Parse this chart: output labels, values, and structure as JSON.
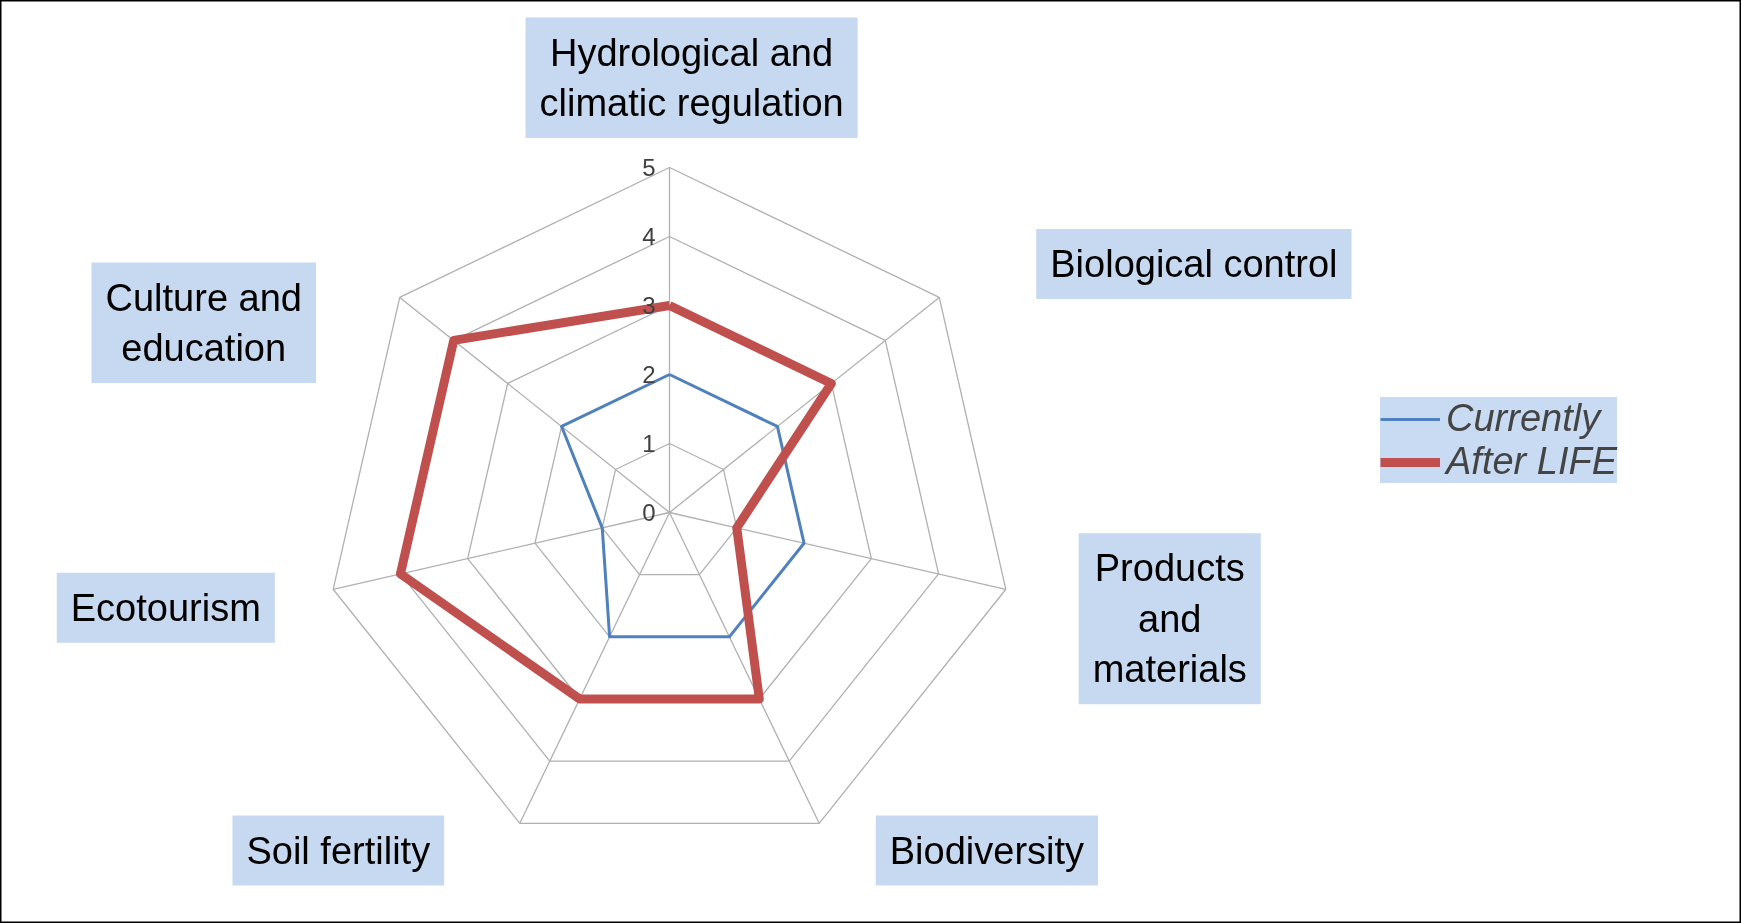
{
  "chart_data": {
    "type": "radar",
    "categories": [
      "Hydrological and climatic regulation",
      "Biological control",
      "Products and materials",
      "Biodiversity",
      "Soil fertility",
      "Ecotourism",
      "Culture and education"
    ],
    "series": [
      {
        "name": "Currently",
        "color": "#4f81bd",
        "values": [
          2,
          2,
          2,
          2,
          2,
          1,
          2
        ]
      },
      {
        "name": "After LIFE",
        "color": "#c0504d",
        "values": [
          3,
          3,
          1,
          3,
          3,
          4,
          4
        ]
      }
    ],
    "ylim": [
      0,
      5
    ],
    "yticks": [
      0,
      1,
      2,
      3,
      4,
      5
    ],
    "grid": true,
    "legend": "right"
  }
}
